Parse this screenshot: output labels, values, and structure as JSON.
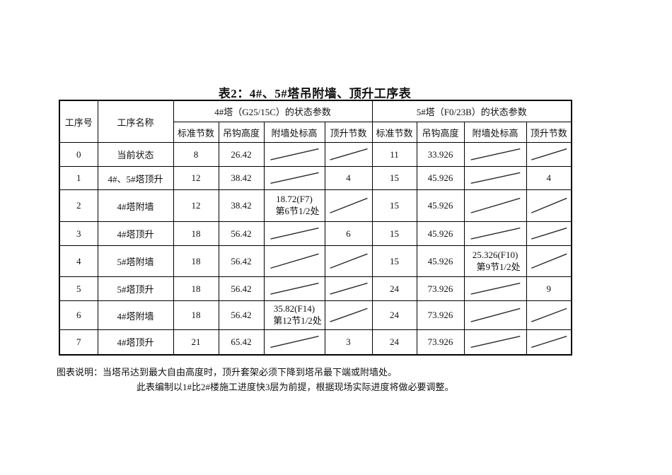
{
  "title": "表2：4#、5#塔吊附墙、顶升工序表",
  "table": {
    "col_step_no": "工序号",
    "col_step_name": "工序名称",
    "group_4": "4#塔（G25/15C）的状态参数",
    "group_5": "5#塔（F0/23B）的状态参数",
    "sub_headers": [
      "标准节数",
      "吊钩高度",
      "附墙处标高",
      "顶升节数"
    ],
    "na_symbol": "diagonal-slash",
    "rows": [
      {
        "no": "0",
        "name": "当前状态",
        "cells": [
          "8",
          "26.42",
          null,
          null,
          "11",
          "33.926",
          null,
          null
        ]
      },
      {
        "no": "1",
        "name": "4#、5#塔顶升",
        "cells": [
          "12",
          "38.42",
          null,
          "4",
          "15",
          "45.926",
          null,
          "4"
        ]
      },
      {
        "no": "2",
        "name": "4#塔附墙",
        "cells": [
          "12",
          "38.42",
          [
            "18.72(F7)",
            "第6节1/2处"
          ],
          null,
          "15",
          "45.926",
          null,
          null
        ]
      },
      {
        "no": "3",
        "name": "4#塔顶升",
        "cells": [
          "18",
          "56.42",
          null,
          "6",
          "15",
          "45.926",
          null,
          null
        ]
      },
      {
        "no": "4",
        "name": "5#塔附墙",
        "cells": [
          "18",
          "56.42",
          null,
          null,
          "15",
          "45.926",
          [
            "25.326(F10)",
            "第9节1/2处"
          ],
          null
        ]
      },
      {
        "no": "5",
        "name": "5#塔顶升",
        "cells": [
          "18",
          "56.42",
          null,
          null,
          "24",
          "73.926",
          null,
          "9"
        ]
      },
      {
        "no": "6",
        "name": "4#塔附墙",
        "cells": [
          "18",
          "56.42",
          [
            "35.82(F14)",
            "第12节1/2处"
          ],
          null,
          "24",
          "73.926",
          null,
          null
        ]
      },
      {
        "no": "7",
        "name": "4#塔顶升",
        "cells": [
          "21",
          "65.42",
          null,
          "3",
          "24",
          "73.926",
          null,
          null
        ]
      }
    ]
  },
  "notes": {
    "line1": "图表说明：当塔吊达到最大自由高度时，顶升套架必须下降到塔吊最下端或附墙处。",
    "line2": "此表编制以1#比2#楼施工进度快3层为前提，根据现场实际进度将做必要调整。"
  },
  "colors": {
    "border": "#000000",
    "text": "#111111",
    "background": "#ffffff"
  }
}
